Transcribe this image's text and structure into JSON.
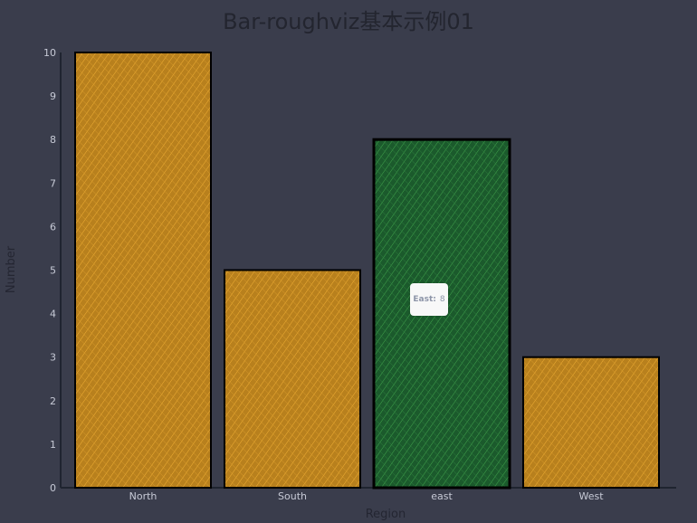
{
  "chart_data": {
    "type": "bar",
    "title": "Bar-roughviz基本示例01",
    "xlabel": "Region",
    "ylabel": "Number",
    "categories": [
      "North",
      "South",
      "east",
      "West"
    ],
    "values": [
      10,
      5,
      8,
      3
    ],
    "ylim": [
      0,
      10
    ],
    "yticks": [
      "0",
      "1",
      "2",
      "3",
      "4",
      "5",
      "6",
      "7",
      "8",
      "9",
      "10"
    ],
    "grid": false,
    "highlight_index": 2,
    "tooltip": {
      "label": "East:",
      "value": "8"
    }
  },
  "colors": {
    "background": "#3a3d4c",
    "bar_fill": "#b8801d",
    "bar_hatch": "#f3b136",
    "highlight_fill": "#1b5a2c",
    "highlight_hatch": "#43a84e",
    "axis": "#1f2430",
    "title": "#23252f",
    "tick_text": "#c7cad6"
  }
}
